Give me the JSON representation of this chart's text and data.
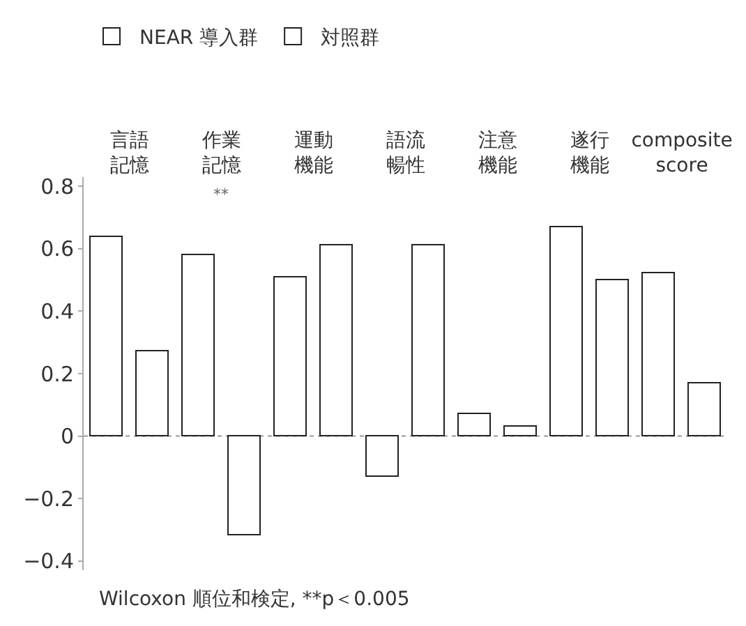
{
  "chart_data": {
    "type": "bar",
    "categories": [
      "言語記憶",
      "作業記憶",
      "運動機能",
      "語流暢性",
      "注意機能",
      "遂行機能",
      "composite score"
    ],
    "series": [
      {
        "name": "NEAR 導入群",
        "color": "#ffffff",
        "values": [
          0.64,
          0.58,
          0.51,
          -0.13,
          0.07,
          0.67,
          0.52
        ]
      },
      {
        "name": "対照群",
        "color": "#ffffff",
        "values": [
          0.27,
          -0.32,
          0.61,
          0.61,
          0.03,
          0.5,
          0.17
        ]
      }
    ],
    "ylim": [
      -0.43,
      0.83
    ],
    "yticks": [
      {
        "value": -0.4,
        "label": "−0.4"
      },
      {
        "value": -0.2,
        "label": "−0.2"
      },
      0,
      0.2,
      0.4,
      0.6,
      0.8
    ],
    "annotations": [
      "**",
      "Wilcoxon 順位和検定, **p＜0.005"
    ],
    "ref_lines": [
      {
        "axis": "y",
        "value": 0,
        "color": "#999999",
        "line_style": "dotted"
      }
    ],
    "grid": false,
    "legend": "top left"
  }
}
